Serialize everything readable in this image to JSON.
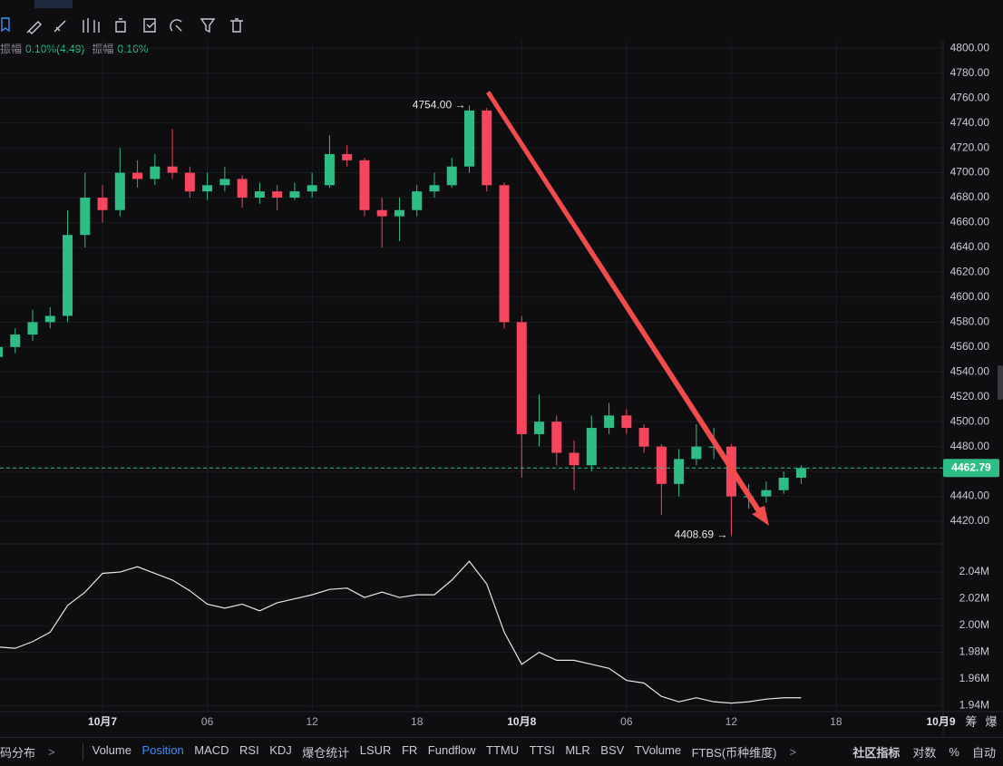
{
  "info": {
    "items": [
      {
        "name": "振幅",
        "value": "0.10%(4.49)"
      },
      {
        "name": "振幅",
        "value": "0.16%"
      }
    ]
  },
  "chart_data": [
    {
      "type": "candlestick",
      "open": [
        4552,
        4560,
        4570,
        4580,
        4585,
        4650,
        4680,
        4670,
        4700,
        4695,
        4705,
        4700,
        4685,
        4690,
        4695,
        4680,
        4685,
        4680,
        4685,
        4690,
        4715,
        4710,
        4670,
        4665,
        4670,
        4685,
        4690,
        4705,
        4750,
        4690,
        4580,
        4490,
        4500,
        4475,
        4465,
        4495,
        4505,
        4495,
        4480,
        4450,
        4470,
        4480,
        4480,
        4440,
        4440,
        4445,
        4455
      ],
      "high": [
        4565,
        4575,
        4590,
        4592,
        4670,
        4700,
        4690,
        4720,
        4710,
        4715,
        4735,
        4705,
        4700,
        4705,
        4698,
        4692,
        4690,
        4692,
        4700,
        4730,
        4722,
        4712,
        4680,
        4680,
        4690,
        4700,
        4712,
        4754,
        4752,
        4692,
        4585,
        4522,
        4505,
        4485,
        4505,
        4515,
        4510,
        4498,
        4482,
        4478,
        4498,
        4495,
        4482,
        4450,
        4452,
        4460,
        4465
      ],
      "low": [
        4548,
        4555,
        4565,
        4575,
        4580,
        4640,
        4660,
        4665,
        4688,
        4690,
        4695,
        4680,
        4678,
        4685,
        4672,
        4675,
        4670,
        4678,
        4680,
        4688,
        4705,
        4665,
        4640,
        4645,
        4665,
        4680,
        4688,
        4700,
        4685,
        4575,
        4455,
        4480,
        4465,
        4445,
        4460,
        4490,
        4490,
        4475,
        4425,
        4440,
        4465,
        4470,
        4408.69,
        4430,
        4435,
        4442,
        4450
      ],
      "close": [
        4560,
        4570,
        4580,
        4585,
        4650,
        4680,
        4670,
        4700,
        4695,
        4705,
        4700,
        4685,
        4690,
        4695,
        4680,
        4685,
        4680,
        4685,
        4690,
        4715,
        4710,
        4670,
        4665,
        4670,
        4685,
        4690,
        4705,
        4750,
        4690,
        4580,
        4490,
        4500,
        4475,
        4465,
        4495,
        4505,
        4495,
        4480,
        4450,
        4470,
        4480,
        4480,
        4440,
        4440,
        4445,
        4455,
        4462.79
      ],
      "up_color": "#2ebd85",
      "down_color": "#f6465d",
      "ylim": [
        4404,
        4806
      ],
      "yticks": [
        {
          "value": 4420,
          "label": "4420.00"
        },
        {
          "value": 4440,
          "label": "4440.00"
        },
        {
          "value": 4460,
          "label": "4460.00"
        },
        {
          "value": 4480,
          "label": "4480.00"
        },
        {
          "value": 4500,
          "label": "4500.00"
        },
        {
          "value": 4520,
          "label": "4520.00"
        },
        {
          "value": 4540,
          "label": "4540.00"
        },
        {
          "value": 4560,
          "label": "4560.00"
        },
        {
          "value": 4580,
          "label": "4580.00"
        },
        {
          "value": 4600,
          "label": "4600.00"
        },
        {
          "value": 4620,
          "label": "4620.00"
        },
        {
          "value": 4640,
          "label": "4640.00"
        },
        {
          "value": 4660,
          "label": "4660.00"
        },
        {
          "value": 4680,
          "label": "4680.00"
        },
        {
          "value": 4700,
          "label": "4700.00"
        },
        {
          "value": 4720,
          "label": "4720.00"
        },
        {
          "value": 4740,
          "label": "4740.00"
        },
        {
          "value": 4760,
          "label": "4760.00"
        },
        {
          "value": 4780,
          "label": "4780.00"
        },
        {
          "value": 4800,
          "label": "4800.00"
        }
      ],
      "xlim": [
        0.13,
        54.13
      ],
      "xticks": [
        {
          "value": 6,
          "label": "10月7"
        },
        {
          "value": 12,
          "label": "06"
        },
        {
          "value": 18,
          "label": "12"
        },
        {
          "value": 24,
          "label": "18"
        },
        {
          "value": 30,
          "label": "10月8"
        },
        {
          "value": 36,
          "label": "06"
        },
        {
          "value": 42,
          "label": "12"
        },
        {
          "value": 48,
          "label": "18"
        },
        {
          "value": 54,
          "label": "10月9"
        }
      ],
      "annotations": [
        {
          "value": 4754,
          "label": "4754.00 →",
          "field": "high"
        },
        {
          "value": 4408.69,
          "label": "4408.69 →",
          "field": "low"
        }
      ],
      "last_price": 4462.79,
      "grid": true
    },
    {
      "type": "line",
      "name": "Position",
      "color": "#e6e6e6",
      "values": [
        1984000,
        1983000,
        1988000,
        1995000,
        2015000,
        2025000,
        2039000,
        2040000,
        2044000,
        2039000,
        2034000,
        2026000,
        2016000,
        2013000,
        2016000,
        2011000,
        2017000,
        2020000,
        2023000,
        2027000,
        2028000,
        2021000,
        2025000,
        2021000,
        2023000,
        2023000,
        2034000,
        2048000,
        2031000,
        1995000,
        1971000,
        1980000,
        1974000,
        1974000,
        1971000,
        1968000,
        1959000,
        1957000,
        1947000,
        1943000,
        1946000,
        1943000,
        1942000,
        1943000,
        1945000,
        1946000,
        1946000
      ],
      "ylim": [
        1937000,
        2059000
      ],
      "yticks": [
        {
          "value": 1940000,
          "label": "1.94M"
        },
        {
          "value": 1960000,
          "label": "1.96M"
        },
        {
          "value": 1980000,
          "label": "1.98M"
        },
        {
          "value": 2000000,
          "label": "2.00M"
        },
        {
          "value": 2020000,
          "label": "2.02M"
        },
        {
          "value": 2040000,
          "label": "2.04M"
        }
      ],
      "grid": true
    }
  ],
  "axis_right": [
    "筹",
    "爆"
  ],
  "bottom_bar": {
    "left": "码分布",
    "tabs": [
      {
        "label": "Volume"
      },
      {
        "label": "Position",
        "active": true
      },
      {
        "label": "MACD"
      },
      {
        "label": "RSI"
      },
      {
        "label": "KDJ"
      },
      {
        "label": "爆仓统计"
      },
      {
        "label": "LSUR"
      },
      {
        "label": "FR"
      },
      {
        "label": "Fundflow"
      },
      {
        "label": "TTMU"
      },
      {
        "label": "TTSI"
      },
      {
        "label": "MLR"
      },
      {
        "label": "BSV"
      },
      {
        "label": "TVolume"
      },
      {
        "label": "FTBS(币种维度)"
      }
    ],
    "right": [
      "社区指标",
      "对数",
      "%",
      "自动"
    ]
  }
}
